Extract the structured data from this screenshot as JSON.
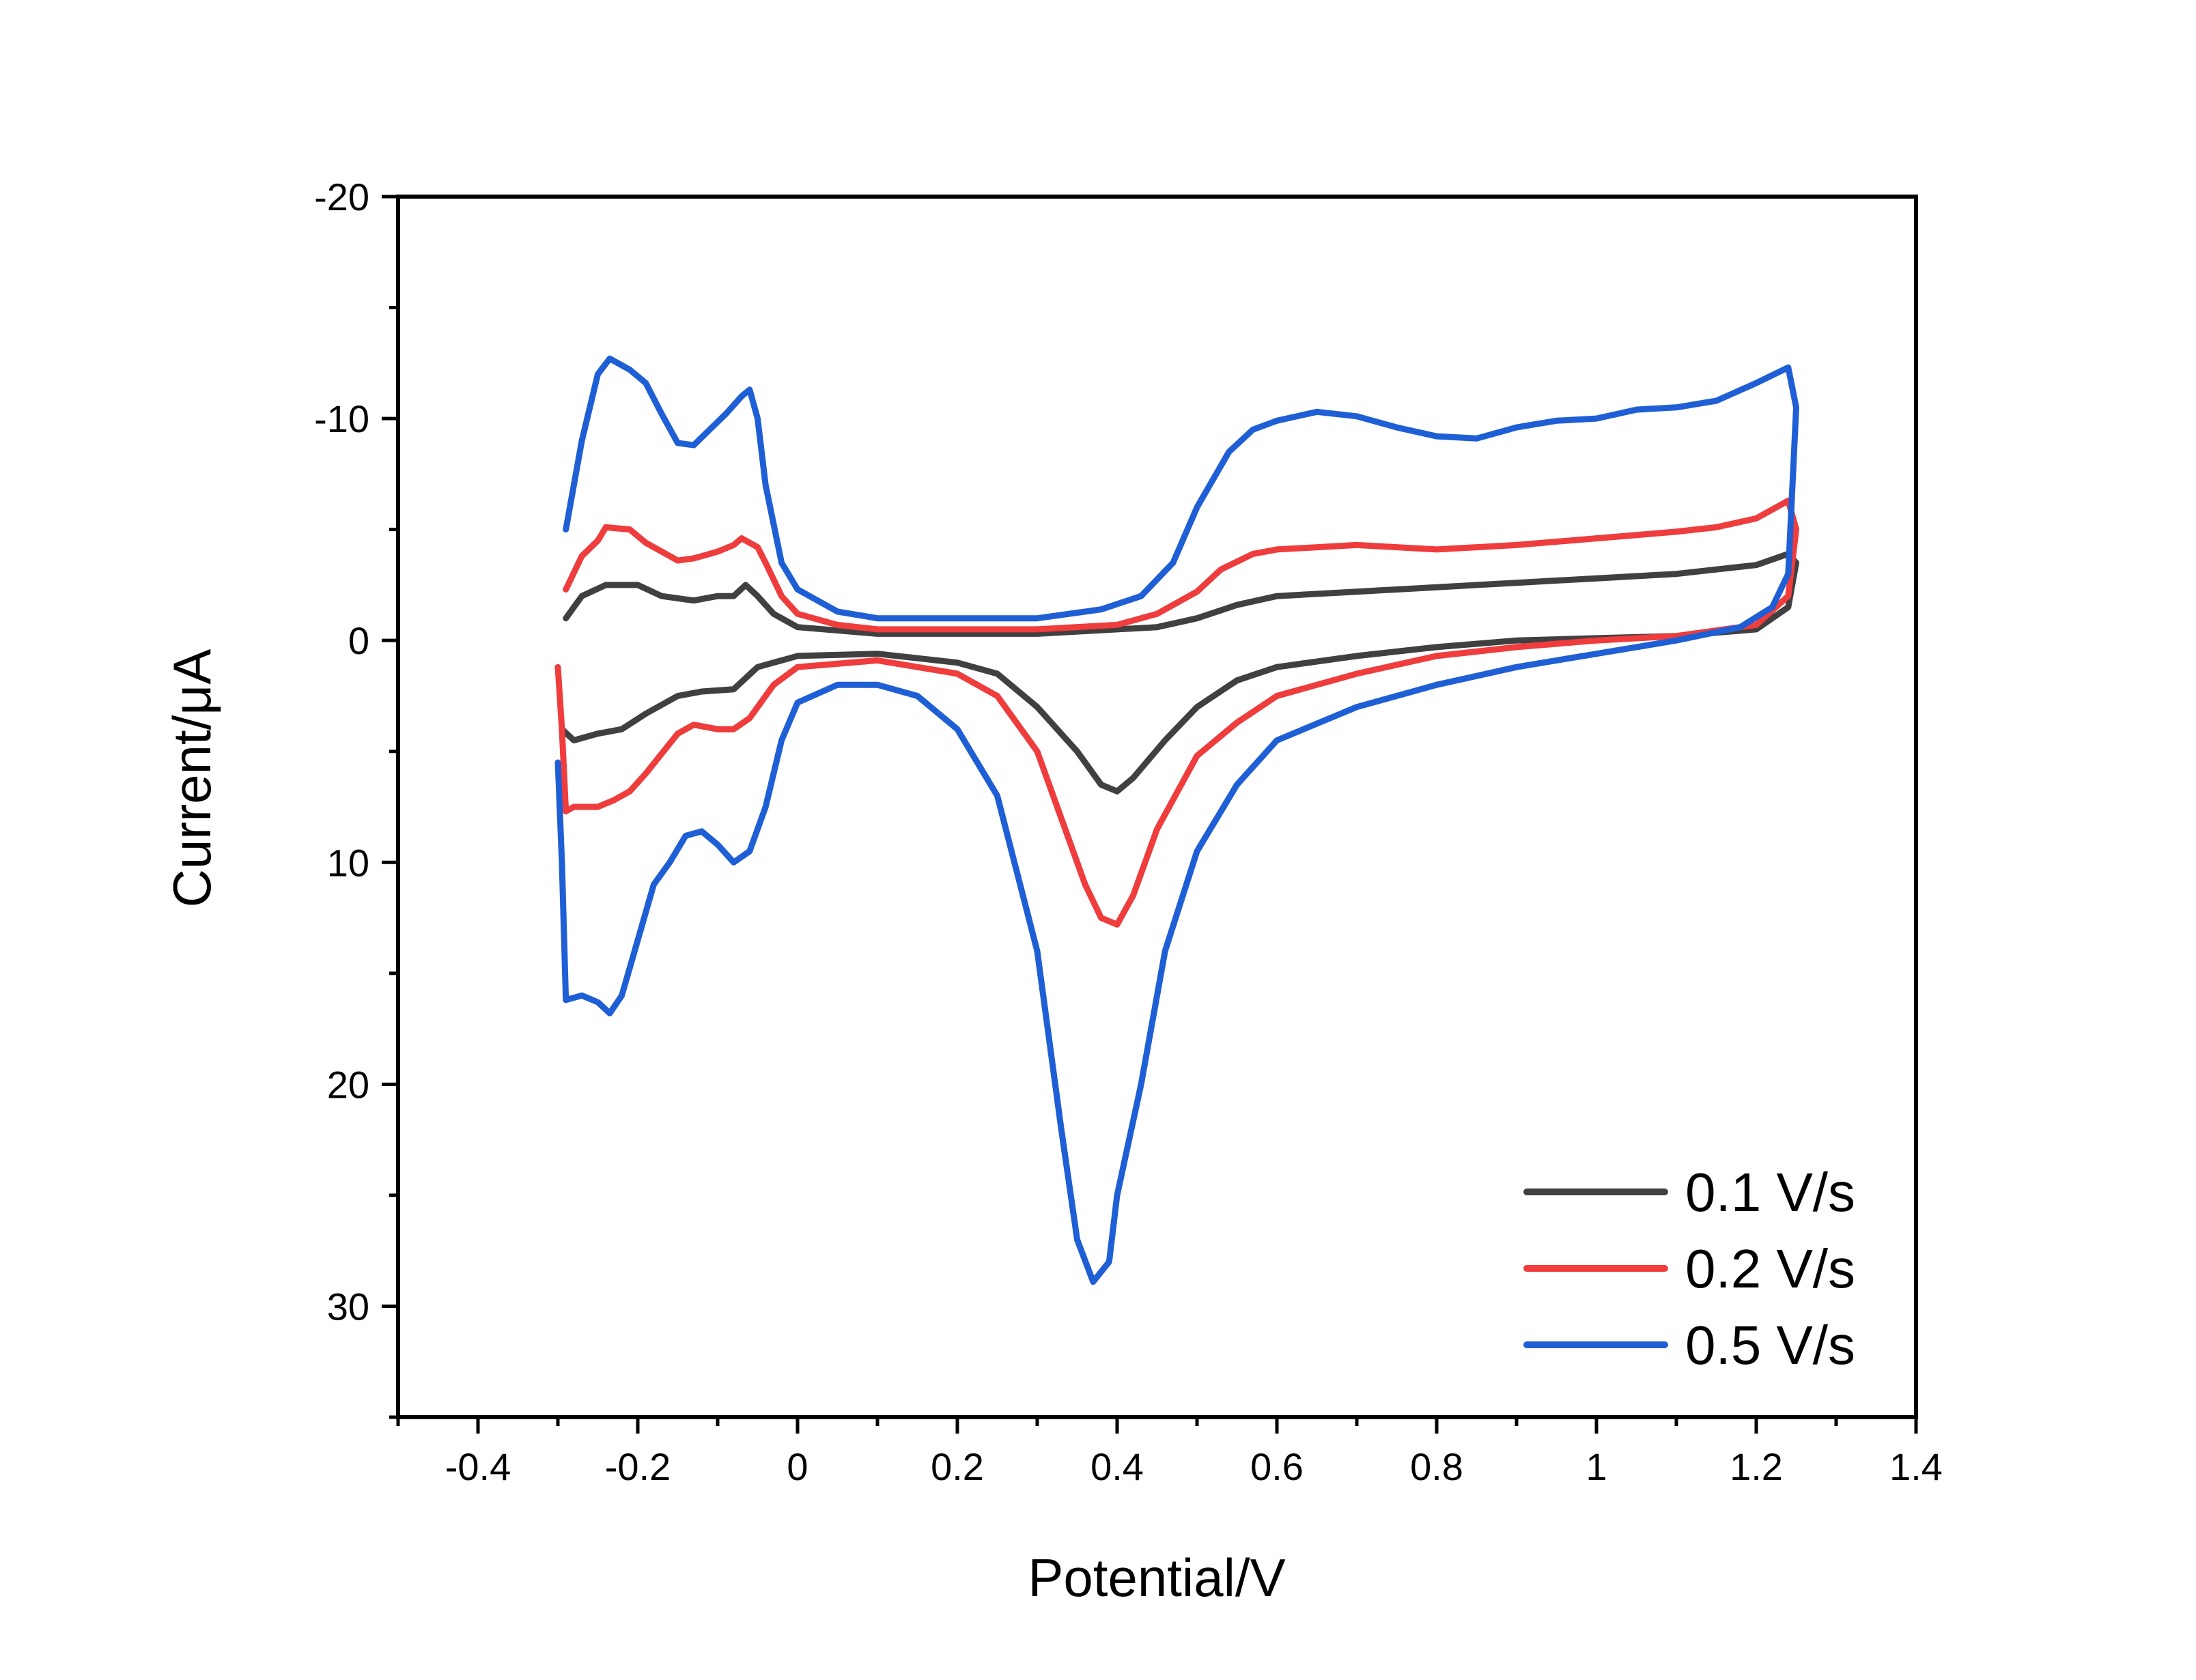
{
  "chart_data": {
    "type": "line",
    "title": "",
    "xlabel": "Potential/V",
    "ylabel": "Current/μA",
    "xlim": [
      -0.5,
      1.4
    ],
    "ylim": [
      -20,
      35
    ],
    "y_inverted": true,
    "x_ticks": [
      {
        "value": -0.4,
        "label": "-0.4"
      },
      {
        "value": -0.2,
        "label": "-0.2"
      },
      {
        "value": 0,
        "label": "0"
      },
      {
        "value": 0.2,
        "label": "0.2"
      },
      {
        "value": 0.4,
        "label": "0.4"
      },
      {
        "value": 0.6,
        "label": "0.6"
      },
      {
        "value": 0.8,
        "label": "0.8"
      },
      {
        "value": 1.0,
        "label": "1"
      },
      {
        "value": 1.2,
        "label": "1.2"
      },
      {
        "value": 1.4,
        "label": "1.4"
      }
    ],
    "y_ticks": [
      {
        "value": -20,
        "label": "-20"
      },
      {
        "value": -10,
        "label": "-10"
      },
      {
        "value": 0,
        "label": "0"
      },
      {
        "value": 10,
        "label": "10"
      },
      {
        "value": 20,
        "label": "20"
      },
      {
        "value": 30,
        "label": "30"
      }
    ],
    "grid": false,
    "legend_position": "bottom-right",
    "series": [
      {
        "name": "0.1 V/s",
        "color": "#404040",
        "points": [
          [
            -0.29,
            -1.0
          ],
          [
            -0.27,
            -2.0
          ],
          [
            -0.24,
            -2.5
          ],
          [
            -0.2,
            -2.5
          ],
          [
            -0.17,
            -2.0
          ],
          [
            -0.13,
            -1.8
          ],
          [
            -0.1,
            -2.0
          ],
          [
            -0.08,
            -2.0
          ],
          [
            -0.065,
            -2.5
          ],
          [
            -0.05,
            -2.0
          ],
          [
            -0.03,
            -1.2
          ],
          [
            0.0,
            -0.6
          ],
          [
            0.1,
            -0.3
          ],
          [
            0.3,
            -0.3
          ],
          [
            0.45,
            -0.6
          ],
          [
            0.5,
            -1.0
          ],
          [
            0.55,
            -1.6
          ],
          [
            0.6,
            -2.0
          ],
          [
            0.7,
            -2.2
          ],
          [
            0.8,
            -2.4
          ],
          [
            0.9,
            -2.6
          ],
          [
            1.0,
            -2.8
          ],
          [
            1.1,
            -3.0
          ],
          [
            1.2,
            -3.4
          ],
          [
            1.24,
            -3.9
          ],
          [
            1.25,
            -3.5
          ],
          [
            1.24,
            -1.5
          ],
          [
            1.2,
            -0.5
          ],
          [
            1.1,
            -0.2
          ],
          [
            1.0,
            -0.1
          ],
          [
            0.9,
            0.0
          ],
          [
            0.8,
            0.3
          ],
          [
            0.7,
            0.7
          ],
          [
            0.6,
            1.2
          ],
          [
            0.55,
            1.8
          ],
          [
            0.5,
            3.0
          ],
          [
            0.46,
            4.5
          ],
          [
            0.42,
            6.2
          ],
          [
            0.4,
            6.8
          ],
          [
            0.38,
            6.5
          ],
          [
            0.35,
            5.0
          ],
          [
            0.3,
            3.0
          ],
          [
            0.25,
            1.5
          ],
          [
            0.2,
            1.0
          ],
          [
            0.1,
            0.6
          ],
          [
            0.0,
            0.7
          ],
          [
            -0.05,
            1.2
          ],
          [
            -0.08,
            2.2
          ],
          [
            -0.12,
            2.3
          ],
          [
            -0.15,
            2.5
          ],
          [
            -0.19,
            3.3
          ],
          [
            -0.22,
            4.0
          ],
          [
            -0.25,
            4.2
          ],
          [
            -0.28,
            4.5
          ],
          [
            -0.295,
            4.0
          ]
        ]
      },
      {
        "name": "0.2 V/s",
        "color": "#ef3c3c",
        "points": [
          [
            -0.29,
            -2.3
          ],
          [
            -0.27,
            -3.8
          ],
          [
            -0.25,
            -4.5
          ],
          [
            -0.24,
            -5.1
          ],
          [
            -0.21,
            -5.0
          ],
          [
            -0.19,
            -4.4
          ],
          [
            -0.17,
            -4.0
          ],
          [
            -0.15,
            -3.6
          ],
          [
            -0.13,
            -3.7
          ],
          [
            -0.1,
            -4.0
          ],
          [
            -0.08,
            -4.3
          ],
          [
            -0.07,
            -4.6
          ],
          [
            -0.05,
            -4.2
          ],
          [
            -0.04,
            -3.5
          ],
          [
            -0.02,
            -2.0
          ],
          [
            0.0,
            -1.2
          ],
          [
            0.05,
            -0.7
          ],
          [
            0.1,
            -0.5
          ],
          [
            0.3,
            -0.5
          ],
          [
            0.4,
            -0.7
          ],
          [
            0.45,
            -1.2
          ],
          [
            0.5,
            -2.2
          ],
          [
            0.53,
            -3.2
          ],
          [
            0.57,
            -3.9
          ],
          [
            0.6,
            -4.1
          ],
          [
            0.7,
            -4.3
          ],
          [
            0.8,
            -4.1
          ],
          [
            0.9,
            -4.3
          ],
          [
            1.0,
            -4.6
          ],
          [
            1.1,
            -4.9
          ],
          [
            1.15,
            -5.1
          ],
          [
            1.2,
            -5.5
          ],
          [
            1.24,
            -6.3
          ],
          [
            1.25,
            -5.0
          ],
          [
            1.24,
            -2.0
          ],
          [
            1.2,
            -0.7
          ],
          [
            1.1,
            -0.2
          ],
          [
            1.0,
            0.0
          ],
          [
            0.9,
            0.3
          ],
          [
            0.8,
            0.7
          ],
          [
            0.7,
            1.5
          ],
          [
            0.6,
            2.5
          ],
          [
            0.55,
            3.7
          ],
          [
            0.5,
            5.2
          ],
          [
            0.45,
            8.5
          ],
          [
            0.42,
            11.5
          ],
          [
            0.4,
            12.8
          ],
          [
            0.38,
            12.5
          ],
          [
            0.36,
            11.0
          ],
          [
            0.33,
            8.0
          ],
          [
            0.3,
            5.0
          ],
          [
            0.25,
            2.5
          ],
          [
            0.2,
            1.5
          ],
          [
            0.1,
            0.9
          ],
          [
            0.0,
            1.2
          ],
          [
            -0.03,
            2.0
          ],
          [
            -0.06,
            3.5
          ],
          [
            -0.08,
            4.0
          ],
          [
            -0.1,
            4.0
          ],
          [
            -0.13,
            3.8
          ],
          [
            -0.15,
            4.2
          ],
          [
            -0.19,
            6.0
          ],
          [
            -0.21,
            6.8
          ],
          [
            -0.23,
            7.2
          ],
          [
            -0.25,
            7.5
          ],
          [
            -0.28,
            7.5
          ],
          [
            -0.29,
            7.7
          ],
          [
            -0.295,
            4.0
          ],
          [
            -0.3,
            1.2
          ]
        ]
      },
      {
        "name": "0.5 V/s",
        "color": "#1f5fd6",
        "points": [
          [
            -0.29,
            -5.0
          ],
          [
            -0.27,
            -9.0
          ],
          [
            -0.25,
            -12.0
          ],
          [
            -0.235,
            -12.7
          ],
          [
            -0.21,
            -12.2
          ],
          [
            -0.19,
            -11.6
          ],
          [
            -0.17,
            -10.2
          ],
          [
            -0.15,
            -8.9
          ],
          [
            -0.13,
            -8.8
          ],
          [
            -0.11,
            -9.5
          ],
          [
            -0.09,
            -10.2
          ],
          [
            -0.07,
            -11.0
          ],
          [
            -0.06,
            -11.3
          ],
          [
            -0.05,
            -10.0
          ],
          [
            -0.04,
            -7.0
          ],
          [
            -0.02,
            -3.5
          ],
          [
            0.0,
            -2.3
          ],
          [
            0.05,
            -1.3
          ],
          [
            0.1,
            -1.0
          ],
          [
            0.3,
            -1.0
          ],
          [
            0.38,
            -1.4
          ],
          [
            0.43,
            -2.0
          ],
          [
            0.47,
            -3.5
          ],
          [
            0.5,
            -6.0
          ],
          [
            0.54,
            -8.5
          ],
          [
            0.57,
            -9.5
          ],
          [
            0.6,
            -9.9
          ],
          [
            0.65,
            -10.3
          ],
          [
            0.7,
            -10.1
          ],
          [
            0.75,
            -9.6
          ],
          [
            0.8,
            -9.2
          ],
          [
            0.85,
            -9.1
          ],
          [
            0.9,
            -9.6
          ],
          [
            0.95,
            -9.9
          ],
          [
            1.0,
            -10.0
          ],
          [
            1.05,
            -10.4
          ],
          [
            1.1,
            -10.5
          ],
          [
            1.15,
            -10.8
          ],
          [
            1.2,
            -11.6
          ],
          [
            1.24,
            -12.3
          ],
          [
            1.25,
            -10.5
          ],
          [
            1.24,
            -3.0
          ],
          [
            1.22,
            -1.5
          ],
          [
            1.18,
            -0.6
          ],
          [
            1.1,
            0.0
          ],
          [
            1.0,
            0.6
          ],
          [
            0.9,
            1.2
          ],
          [
            0.8,
            2.0
          ],
          [
            0.7,
            3.0
          ],
          [
            0.6,
            4.5
          ],
          [
            0.55,
            6.5
          ],
          [
            0.5,
            9.5
          ],
          [
            0.46,
            14.0
          ],
          [
            0.43,
            20.0
          ],
          [
            0.4,
            25.0
          ],
          [
            0.39,
            28.0
          ],
          [
            0.37,
            28.9
          ],
          [
            0.35,
            27.0
          ],
          [
            0.33,
            22.0
          ],
          [
            0.3,
            14.0
          ],
          [
            0.25,
            7.0
          ],
          [
            0.2,
            4.0
          ],
          [
            0.15,
            2.5
          ],
          [
            0.1,
            2.0
          ],
          [
            0.05,
            2.0
          ],
          [
            0.0,
            2.8
          ],
          [
            -0.02,
            4.5
          ],
          [
            -0.04,
            7.5
          ],
          [
            -0.06,
            9.5
          ],
          [
            -0.08,
            10.0
          ],
          [
            -0.1,
            9.2
          ],
          [
            -0.12,
            8.6
          ],
          [
            -0.14,
            8.8
          ],
          [
            -0.16,
            10.0
          ],
          [
            -0.18,
            11.0
          ],
          [
            -0.2,
            13.5
          ],
          [
            -0.22,
            16.0
          ],
          [
            -0.235,
            16.8
          ],
          [
            -0.25,
            16.3
          ],
          [
            -0.27,
            16.0
          ],
          [
            -0.29,
            16.2
          ],
          [
            -0.295,
            10.0
          ],
          [
            -0.3,
            5.5
          ]
        ]
      }
    ]
  }
}
